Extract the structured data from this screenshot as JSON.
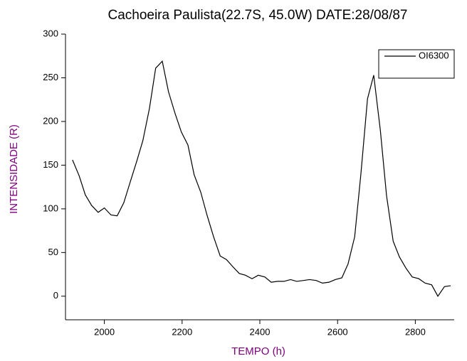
{
  "chart_data": {
    "type": "line",
    "title": "Cachoeira Paulista(22.7S, 45.0W) DATE:28/08/87",
    "x_label": "TEMPO (h)",
    "y_label": "INTENSIDADE (R)",
    "x": [
      1918,
      1935,
      1951,
      1967,
      1984,
      2000,
      2017,
      2033,
      2050,
      2066,
      2083,
      2099,
      2116,
      2132,
      2149,
      2165,
      2182,
      2198,
      2215,
      2231,
      2248,
      2264,
      2281,
      2298,
      2314,
      2330,
      2347,
      2363,
      2380,
      2396,
      2413,
      2429,
      2446,
      2462,
      2479,
      2495,
      2512,
      2528,
      2545,
      2561,
      2578,
      2594,
      2611,
      2627,
      2644,
      2660,
      2677,
      2693,
      2710,
      2726,
      2743,
      2759,
      2776,
      2792,
      2809,
      2825,
      2842,
      2858,
      2875,
      2891
    ],
    "series": [
      {
        "name": "OI6300",
        "color": "#000000",
        "values": [
          156,
          138,
          116,
          104,
          96,
          101,
          93,
          92,
          107,
          130,
          154,
          178,
          215,
          261,
          269,
          234,
          209,
          188,
          173,
          139,
          119,
          93,
          68,
          46,
          42,
          34,
          26,
          24,
          20,
          24,
          22,
          16,
          17,
          17,
          19,
          17,
          18,
          19,
          18,
          15,
          16,
          19,
          21,
          37,
          68,
          140,
          226,
          253,
          190,
          115,
          63,
          45,
          32,
          22,
          20,
          15,
          13,
          0,
          11,
          12
        ]
      }
    ],
    "xlim": [
      1900,
      2900
    ],
    "ylim": [
      -27,
      300
    ],
    "xticks": [
      2000,
      2200,
      2400,
      2600,
      2800
    ],
    "yticks": [
      0,
      50,
      100,
      150,
      200,
      250,
      300
    ],
    "legend": "top-right"
  }
}
